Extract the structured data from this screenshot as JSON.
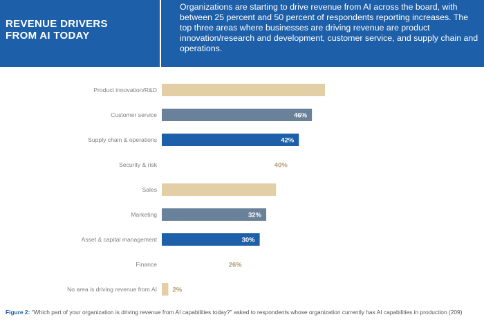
{
  "header": {
    "title": "REVENUE DRIVERS\nFROM AI TODAY",
    "text": "Organizations are starting to drive revenue from AI across the board, with between 25 percent and 50 percent of respondents reporting increases. The top three areas where businesses are driving revenue are product innovation/research and development, customer service, and supply chain and operations."
  },
  "caption": {
    "label": "Figure 2:",
    "text": " \"Which part of your organization is driving revenue from AI capabilities today?\" asked to respondents whose organization currently has AI capabilities in production (209)"
  },
  "colors": {
    "header_bg": "#1d5fa8",
    "tan": "#e3cfa6",
    "slate": "#6a8299",
    "blue": "#1d5fa8",
    "label_text": "#808080",
    "value_outside": "#b39a6e"
  },
  "chart_data": {
    "type": "bar",
    "orientation": "horizontal",
    "categories": [
      "Product innovation/R&D",
      "Customer service",
      "Supply chain & operations",
      "Security & risk",
      "Sales",
      "Marketing",
      "Asset & capital management",
      "Finance",
      "No area is driving revenue from AI"
    ],
    "values": [
      50,
      46,
      42,
      40,
      35,
      32,
      30,
      26,
      2
    ],
    "value_labels": [
      "",
      "46%",
      "42%",
      "40%",
      "",
      "32%",
      "30%",
      "26%",
      "2%"
    ],
    "bar_colors": [
      "#e3cfa6",
      "#6a8299",
      "#1d5fa8",
      "#ffffff",
      "#e3cfa6",
      "#6a8299",
      "#1d5fa8",
      "#ffffff",
      "#e3cfa6"
    ],
    "title": "",
    "xlabel": "",
    "ylabel": "",
    "xlim": [
      0,
      50
    ],
    "grid": false,
    "legend": "none"
  }
}
